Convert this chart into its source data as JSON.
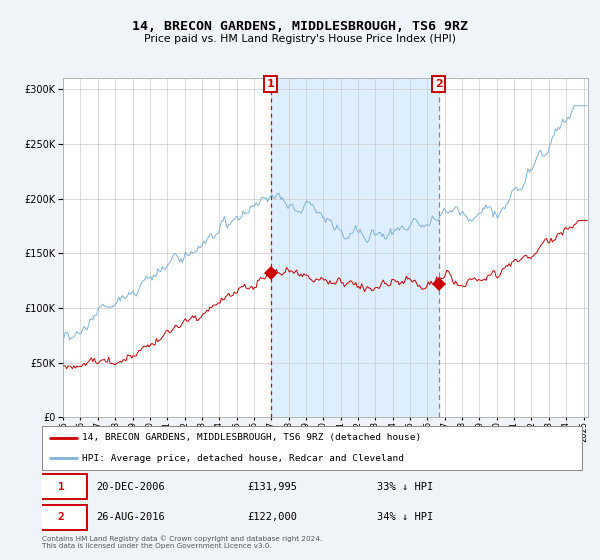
{
  "title": "14, BRECON GARDENS, MIDDLESBROUGH, TS6 9RZ",
  "subtitle": "Price paid vs. HM Land Registry's House Price Index (HPI)",
  "legend_line1": "14, BRECON GARDENS, MIDDLESBROUGH, TS6 9RZ (detached house)",
  "legend_line2": "HPI: Average price, detached house, Redcar and Cleveland",
  "annotation1_date": "20-DEC-2006",
  "annotation1_price": "£131,995",
  "annotation1_pct": "33% ↓ HPI",
  "annotation2_date": "26-AUG-2016",
  "annotation2_price": "£122,000",
  "annotation2_pct": "34% ↓ HPI",
  "footer": "Contains HM Land Registry data © Crown copyright and database right 2024.\nThis data is licensed under the Open Government Licence v3.0.",
  "hpi_color": "#7fb3d9",
  "price_color": "#cc0000",
  "shaded_color": "#ddeeff",
  "vline1_color": "#cc0000",
  "vline2_color": "#888888",
  "background_color": "#f0f4f8",
  "plot_bg_color": "#ffffff",
  "ylim_max": 310000
}
